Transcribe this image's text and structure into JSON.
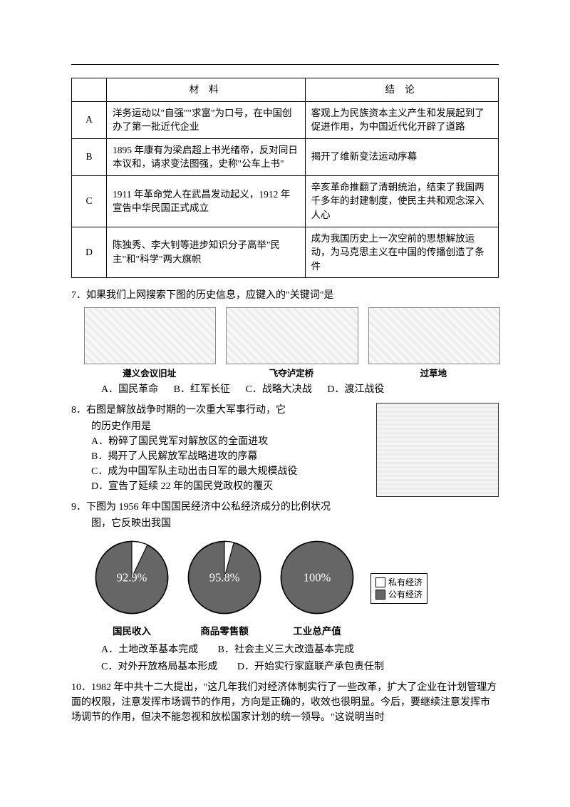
{
  "table": {
    "headers": {
      "material": "材 料",
      "conclusion": "结 论"
    },
    "rows": [
      {
        "label": "A",
        "material": "洋务运动以\"自强\"\"求富\"为口号，在中国创办了第一批近代企业",
        "conclusion": "客观上为民族资本主义产生和发展起到了促进作用，为中国近代化开辟了道路"
      },
      {
        "label": "B",
        "material": "1895 年康有为梁启超上书光绪帝，反对同日本议和，请求变法图强，史称\"公车上书\"",
        "conclusion": "揭开了维新变法运动序幕"
      },
      {
        "label": "C",
        "material": "1911 年革命党人在武昌发动起义，1912 年宣告中华民国正式成立",
        "conclusion": "辛亥革命推翻了清朝统治，结束了我国两千多年的封建制度，使民主共和观念深入人心"
      },
      {
        "label": "D",
        "material": "陈独秀、李大钊等进步知识分子高举\"民主\"和\"科学\"两大旗帜",
        "conclusion": "成为我国历史上一次空前的思想解放运动，为马克思主义在中国的传播创造了条件"
      }
    ]
  },
  "q7": {
    "num": "7．",
    "text": "如果我们上网搜索下图的历史信息，应键入的\"关键词\"是",
    "images": [
      {
        "cap": "遵义会议旧址"
      },
      {
        "cap": "飞夺泸定桥"
      },
      {
        "cap": "过草地"
      }
    ],
    "opts": {
      "A": "A．国民革命",
      "B": "B．红军长征",
      "C": "C．战略大决战",
      "D": "D．渡江战役"
    }
  },
  "q8": {
    "num": "8．",
    "line1": "右图是解放战争时期的一次重大军事行动，它",
    "line2": "的历史作用是",
    "opts": {
      "A": "A．粉碎了国民党军对解放区的全面进攻",
      "B": "B．揭开了人民解放军战略进攻的序幕",
      "C": "C．成为中国军队主动出击日军的最大规模战役",
      "D": "D．宣告了延续 22 年的国民党政权的覆灭"
    }
  },
  "q9": {
    "num": "9．",
    "line1": "下图为 1956 年中国国民经济中公私经济成分的比例状况",
    "line2": "图，它反映出我国",
    "pies": [
      {
        "percent": "92.9%",
        "frac": 0.929,
        "cap": "国民收入"
      },
      {
        "percent": "95.8%",
        "frac": 0.958,
        "cap": "商品零售额"
      },
      {
        "percent": "100%",
        "frac": 1.0,
        "cap": "工业总产值"
      }
    ],
    "legend": {
      "private": "私有经济",
      "public": "公有经济"
    },
    "opts": {
      "A": "A．土地改革基本完成",
      "B": "B．社会主义三大改造基本完成",
      "C": "C．对外开放格局基本形成",
      "D": "D．开始实行家庭联产承包责任制"
    }
  },
  "q10": {
    "num": "10．",
    "text": "1982 年中共十二大提出，\"这几年我们对经济体制实行了一些改革，扩大了企业在计划管理方面的权限，注意发挥市场调节的作用，方向是正确的，收效也很明显。今后，要继续注意发挥市场调节的作用，但决不能忽视和放松国家计划的统一领导。\"这说明当时"
  },
  "colors": {
    "public_fill": "#666666",
    "private_fill": "#ffffff",
    "pie_stroke": "#000000"
  }
}
